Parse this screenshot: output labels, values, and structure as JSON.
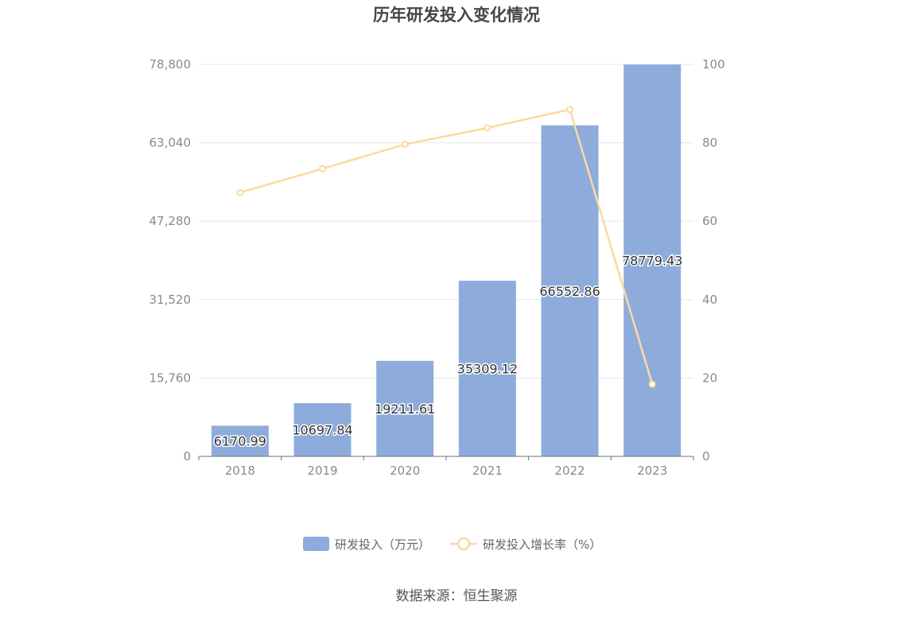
{
  "chart_data": {
    "type": "bar",
    "title": "历年研发投入变化情况",
    "categories": [
      "2018",
      "2019",
      "2020",
      "2021",
      "2022",
      "2023"
    ],
    "series": [
      {
        "name": "研发投入（万元）",
        "type": "bar",
        "axis": "left",
        "values": [
          6170.99,
          10697.84,
          19211.61,
          35309.12,
          66552.86,
          78779.43
        ],
        "value_labels": [
          "6170.99",
          "10697.84",
          "19211.61",
          "35309.12",
          "66552.86",
          "78779.43"
        ]
      },
      {
        "name": "研发投入增长率（%）",
        "type": "line",
        "axis": "right",
        "values": [
          67.3,
          73.4,
          79.6,
          83.8,
          88.5,
          18.4
        ]
      }
    ],
    "y_left": {
      "ylim": [
        0,
        78800
      ],
      "ticks": [
        0,
        15760,
        31520,
        47280,
        63040,
        78800
      ],
      "tick_labels": [
        "0",
        "15,760",
        "31,520",
        "47,280",
        "63,040",
        "78,800"
      ]
    },
    "y_right": {
      "ylim": [
        0,
        100
      ],
      "ticks": [
        0,
        20,
        40,
        60,
        80,
        100
      ],
      "tick_labels": [
        "0",
        "20",
        "40",
        "60",
        "80",
        "100"
      ]
    },
    "xlabel": "",
    "ylabel": "",
    "grid": true,
    "legend_position": "bottom",
    "colors": {
      "bar": "#8eacdb",
      "line": "#fcd99e",
      "grid": "#e3e6ef",
      "axis": "#6e7079"
    }
  },
  "source_text": "数据来源：恒生聚源"
}
